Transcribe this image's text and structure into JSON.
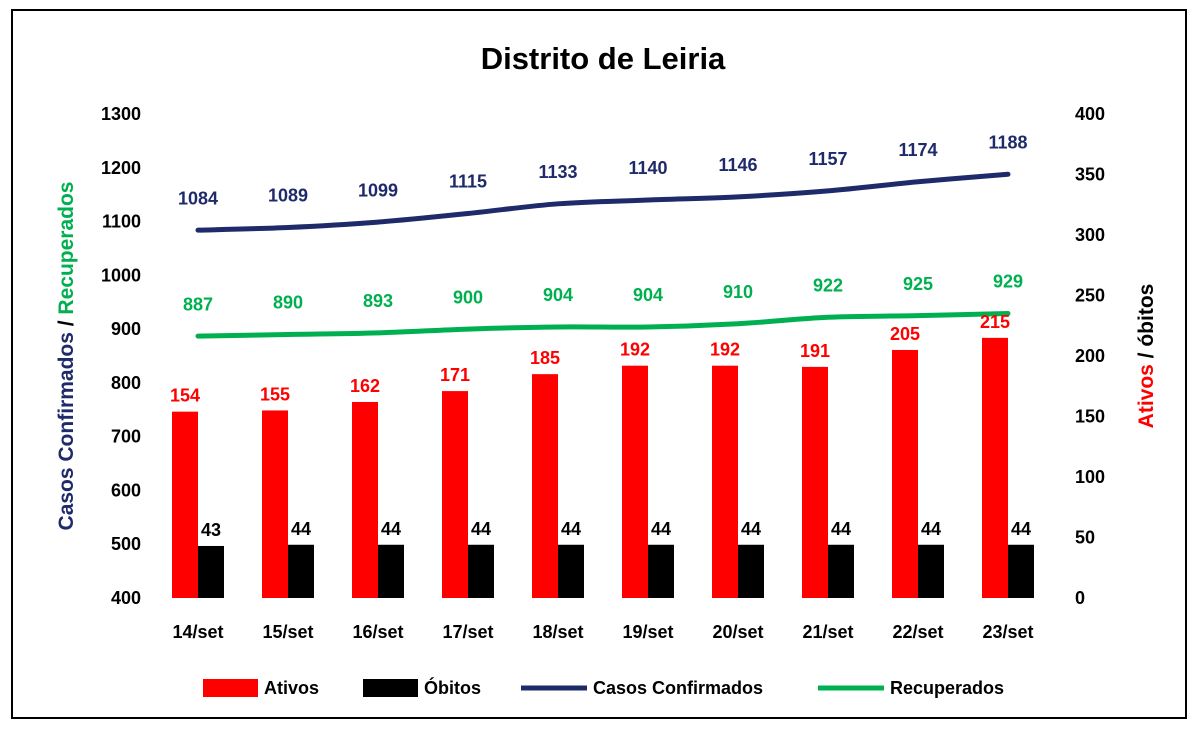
{
  "chart_data": {
    "type": "bar",
    "title": "Distrito de Leiria",
    "categories": [
      "14/set",
      "15/set",
      "16/set",
      "17/set",
      "18/set",
      "19/set",
      "20/set",
      "21/set",
      "22/set",
      "23/set"
    ],
    "left_axis": {
      "label_parts": [
        {
          "text": "Casos Confirmados",
          "color": "#1f2a6b"
        },
        {
          "text": " / ",
          "color": "#000000"
        },
        {
          "text": "Recuperados",
          "color": "#00b050"
        }
      ],
      "ylim": [
        400,
        1300
      ],
      "ticks": [
        400,
        500,
        600,
        700,
        800,
        900,
        1000,
        1100,
        1200,
        1300
      ]
    },
    "right_axis": {
      "label_parts": [
        {
          "text": "Ativos",
          "color": "#ff0000"
        },
        {
          "text": " / óbitos",
          "color": "#000000"
        }
      ],
      "ylim": [
        0,
        400
      ],
      "ticks": [
        0,
        50,
        100,
        150,
        200,
        250,
        300,
        350,
        400
      ]
    },
    "series": [
      {
        "name": "Ativos",
        "kind": "bar",
        "axis": "right",
        "color": "#ff0000",
        "label_color": "#ff0000",
        "values": [
          154,
          155,
          162,
          171,
          185,
          192,
          192,
          191,
          205,
          215
        ]
      },
      {
        "name": "Óbitos",
        "kind": "bar",
        "axis": "right",
        "color": "#000000",
        "label_color": "#000000",
        "values": [
          43,
          44,
          44,
          44,
          44,
          44,
          44,
          44,
          44,
          44
        ]
      },
      {
        "name": "Casos Confirmados",
        "kind": "line",
        "axis": "left",
        "color": "#1f2a6b",
        "label_color": "#1f2a6b",
        "values": [
          1084,
          1089,
          1099,
          1115,
          1133,
          1140,
          1146,
          1157,
          1174,
          1188
        ]
      },
      {
        "name": "Recuperados",
        "kind": "line",
        "axis": "left",
        "color": "#00b050",
        "label_color": "#00b050",
        "values": [
          887,
          890,
          893,
          900,
          904,
          904,
          910,
          922,
          925,
          929
        ]
      }
    ],
    "legend": {
      "position": "bottom"
    },
    "grid": false
  }
}
